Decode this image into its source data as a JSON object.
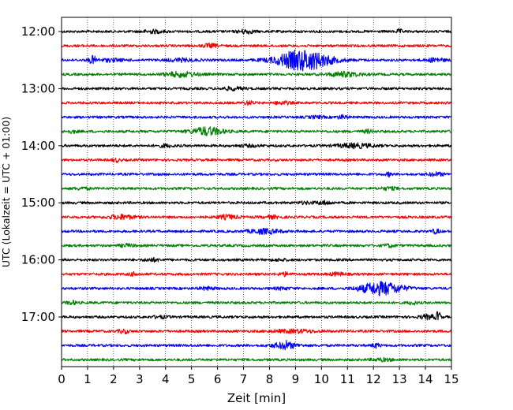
{
  "chart_data": {
    "type": "line",
    "title": "",
    "xlabel": "Zeit  [min]",
    "ylabel": "UTC (Lokalzeit = UTC + 01:00)",
    "xlim": [
      0,
      15
    ],
    "x_ticks": [
      "0",
      "1",
      "2",
      "3",
      "4",
      "5",
      "6",
      "7",
      "8",
      "9",
      "10",
      "11",
      "12",
      "13",
      "14",
      "15"
    ],
    "y_ticks": [
      "12:00",
      "13:00",
      "14:00",
      "15:00",
      "16:00",
      "17:00"
    ],
    "grid": "vertical dotted",
    "row_interval_minutes": 15,
    "colors": [
      "#000000",
      "#ff0000",
      "#0000ff",
      "#008000"
    ],
    "series": [
      {
        "start": "12:00",
        "color": "#000000",
        "bursts": [
          [
            3.5,
            0.4,
            0.35
          ],
          [
            7.1,
            0.3,
            0.45
          ],
          [
            13.0,
            0.1,
            0.5
          ]
        ]
      },
      {
        "start": "12:15",
        "color": "#ff0000",
        "bursts": [
          [
            5.7,
            0.3,
            0.4
          ]
        ]
      },
      {
        "start": "12:30",
        "color": "#0000ff",
        "bursts": [
          [
            1.2,
            0.15,
            0.9
          ],
          [
            1.9,
            0.5,
            0.3
          ],
          [
            4.6,
            0.5,
            0.35
          ],
          [
            9.3,
            1.0,
            2.6
          ],
          [
            14.4,
            0.3,
            0.5
          ]
        ]
      },
      {
        "start": "12:45",
        "color": "#008000",
        "bursts": [
          [
            4.6,
            0.6,
            0.6
          ],
          [
            10.9,
            0.6,
            0.55
          ]
        ]
      },
      {
        "start": "13:00",
        "color": "#000000",
        "bursts": [
          [
            6.6,
            0.4,
            0.35
          ]
        ]
      },
      {
        "start": "13:15",
        "color": "#ff0000",
        "bursts": [
          [
            7.2,
            0.2,
            0.4
          ],
          [
            8.5,
            0.3,
            0.35
          ]
        ]
      },
      {
        "start": "13:30",
        "color": "#0000ff",
        "bursts": [
          [
            9.8,
            0.3,
            0.25
          ],
          [
            10.8,
            0.2,
            0.4
          ]
        ]
      },
      {
        "start": "13:45",
        "color": "#008000",
        "bursts": [
          [
            0.4,
            0.2,
            0.3
          ],
          [
            5.6,
            0.6,
            1.0
          ],
          [
            11.8,
            0.2,
            0.35
          ]
        ]
      },
      {
        "start": "14:00",
        "color": "#000000",
        "bursts": [
          [
            4.0,
            0.3,
            0.3
          ],
          [
            11.3,
            0.7,
            0.5
          ],
          [
            7.2,
            0.5,
            0.2
          ]
        ]
      },
      {
        "start": "14:15",
        "color": "#ff0000",
        "bursts": [
          [
            2.1,
            0.15,
            0.4
          ]
        ]
      },
      {
        "start": "14:30",
        "color": "#0000ff",
        "bursts": [
          [
            12.6,
            0.1,
            0.45
          ],
          [
            14.4,
            0.3,
            0.4
          ]
        ]
      },
      {
        "start": "14:45",
        "color": "#008000",
        "bursts": [
          [
            0.8,
            0.3,
            0.25
          ],
          [
            12.6,
            0.3,
            0.3
          ]
        ]
      },
      {
        "start": "15:00",
        "color": "#000000",
        "bursts": [
          [
            9.4,
            0.3,
            0.25
          ],
          [
            10.1,
            0.3,
            0.4
          ]
        ]
      },
      {
        "start": "15:15",
        "color": "#ff0000",
        "bursts": [
          [
            2.3,
            0.5,
            0.5
          ],
          [
            6.4,
            0.4,
            0.45
          ],
          [
            8.1,
            0.3,
            0.3
          ]
        ]
      },
      {
        "start": "15:30",
        "color": "#0000ff",
        "bursts": [
          [
            7.8,
            0.6,
            0.55
          ],
          [
            14.4,
            0.15,
            0.5
          ]
        ]
      },
      {
        "start": "15:45",
        "color": "#008000",
        "bursts": [
          [
            2.5,
            0.3,
            0.3
          ],
          [
            12.6,
            0.2,
            0.35
          ]
        ]
      },
      {
        "start": "16:00",
        "color": "#000000",
        "bursts": [
          [
            3.5,
            0.3,
            0.35
          ],
          [
            8.4,
            0.3,
            0.2
          ]
        ]
      },
      {
        "start": "16:15",
        "color": "#ff0000",
        "bursts": [
          [
            2.8,
            0.2,
            0.35
          ],
          [
            8.6,
            0.2,
            0.4
          ],
          [
            10.6,
            0.3,
            0.35
          ]
        ]
      },
      {
        "start": "16:30",
        "color": "#0000ff",
        "bursts": [
          [
            12.3,
            0.8,
            1.6
          ],
          [
            5.6,
            0.3,
            0.3
          ],
          [
            8.5,
            0.3,
            0.25
          ]
        ]
      },
      {
        "start": "16:45",
        "color": "#008000",
        "bursts": [
          [
            0.4,
            0.2,
            0.4
          ],
          [
            13.5,
            0.15,
            0.4
          ]
        ]
      },
      {
        "start": "17:00",
        "color": "#000000",
        "bursts": [
          [
            3.8,
            0.3,
            0.25
          ],
          [
            14.1,
            0.3,
            0.5
          ],
          [
            14.5,
            0.08,
            1.5
          ]
        ]
      },
      {
        "start": "17:15",
        "color": "#ff0000",
        "bursts": [
          [
            2.4,
            0.2,
            0.45
          ],
          [
            9.0,
            0.8,
            0.35
          ]
        ]
      },
      {
        "start": "17:30",
        "color": "#0000ff",
        "bursts": [
          [
            8.6,
            0.5,
            0.7
          ],
          [
            8.6,
            0.05,
            1.2
          ],
          [
            12.1,
            0.15,
            0.5
          ]
        ]
      },
      {
        "start": "17:45",
        "color": "#008000",
        "bursts": [
          [
            12.3,
            0.4,
            0.3
          ]
        ]
      }
    ]
  }
}
